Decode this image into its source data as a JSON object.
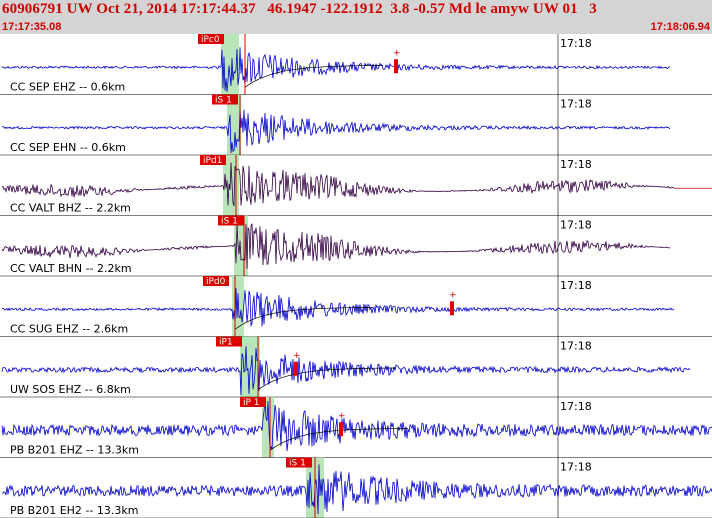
{
  "header": {
    "event_line": "60906791 UW Oct 21, 2014 17:17:44.37   46.1947 -122.1912  3.8 -0.57 Md le amyw UW 01   3",
    "start_time": "17:17:35.08",
    "end_time": "17:18:06.94"
  },
  "colors": {
    "header_bg": "#d4d4d4",
    "header_text": "#cc0000",
    "pick": "#dd0000",
    "window": "#b8e6b8"
  },
  "traces": [
    {
      "label": "CC SEP EHZ -- 0.6km",
      "pick": "iPc0",
      "tick": "17:18",
      "color": "#0000cc",
      "amp": 0.12,
      "has_coda": true,
      "extends": false
    },
    {
      "label": "CC SEP EHN -- 0.6km",
      "pick": "iS 1",
      "tick": "17:18",
      "color": "#0000cc",
      "amp": 0.12,
      "has_coda": false,
      "extends": false
    },
    {
      "label": "CC VALT BHZ -- 2.2km",
      "pick": "iPd1",
      "tick": "17:18",
      "color": "#330044",
      "amp": 0.25,
      "has_coda": false,
      "extends": true
    },
    {
      "label": "CC VALT BHN -- 2.2km",
      "pick": "iS 1",
      "tick": "17:18",
      "color": "#330044",
      "amp": 0.25,
      "has_coda": false,
      "extends": false
    },
    {
      "label": "CC SUG EHZ -- 2.6km",
      "pick": "iPd0",
      "tick": "17:18",
      "color": "#0000cc",
      "amp": 0.12,
      "has_coda": true,
      "extends": false
    },
    {
      "label": "UW SOS EHZ -- 6.8km",
      "pick": "iP1",
      "tick": "17:18",
      "color": "#0000cc",
      "amp": 0.25,
      "has_coda": true,
      "extends": false
    },
    {
      "label": "PB B201 EHZ -- 13.3km",
      "pick": "iP 1",
      "tick": "17:18",
      "color": "#0000cc",
      "amp": 0.55,
      "has_coda": true,
      "extends": true
    },
    {
      "label": "PB B201 EH2 -- 13.3km",
      "pick": "iS 1",
      "tick": "17:18",
      "color": "#0000cc",
      "amp": 0.55,
      "has_coda": false,
      "extends": true
    }
  ]
}
